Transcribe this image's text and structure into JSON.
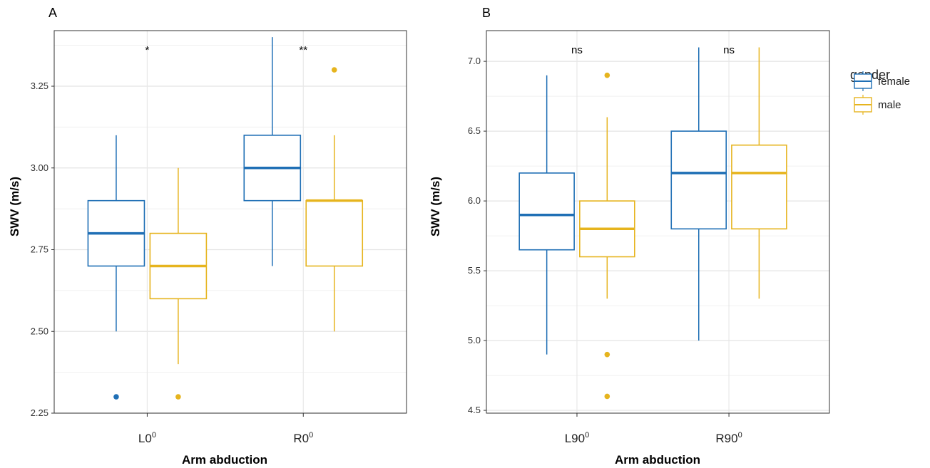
{
  "chart_data": [
    {
      "panel": "A",
      "type": "boxplot",
      "xlabel": "Arm abduction",
      "ylabel": "SWV (m/s)",
      "ylim": [
        2.25,
        3.42
      ],
      "yticks": [
        2.25,
        2.5,
        2.75,
        3.0,
        3.25
      ],
      "ytick_labels": [
        "2.25",
        "2.50",
        "2.75",
        "3.00",
        "3.25"
      ],
      "grid": true,
      "categories": [
        {
          "base": "L0",
          "sup": "0"
        },
        {
          "base": "R0",
          "sup": "0"
        }
      ],
      "significance": [
        "*",
        "**"
      ],
      "series": [
        {
          "name": "female",
          "boxes": [
            {
              "whisker_low": 2.5,
              "q1": 2.7,
              "median": 2.8,
              "q3": 2.9,
              "whisker_high": 3.1,
              "outliers": [
                2.3
              ]
            },
            {
              "whisker_low": 2.7,
              "q1": 2.9,
              "median": 3.0,
              "q3": 3.1,
              "whisker_high": 3.4,
              "outliers": []
            }
          ]
        },
        {
          "name": "male",
          "boxes": [
            {
              "whisker_low": 2.4,
              "q1": 2.6,
              "median": 2.7,
              "q3": 2.8,
              "whisker_high": 3.0,
              "outliers": [
                2.3
              ]
            },
            {
              "whisker_low": 2.5,
              "q1": 2.7,
              "median": 2.9,
              "q3": 2.9,
              "whisker_high": 3.1,
              "outliers": [
                3.3
              ]
            }
          ]
        }
      ]
    },
    {
      "panel": "B",
      "type": "boxplot",
      "xlabel": "Arm abduction",
      "ylabel": "SWV (m/s)",
      "ylim": [
        4.48,
        7.22
      ],
      "yticks": [
        4.5,
        5.0,
        5.5,
        6.0,
        6.5,
        7.0
      ],
      "ytick_labels": [
        "4.5",
        "5.0",
        "5.5",
        "6.0",
        "6.5",
        "7.0"
      ],
      "grid": true,
      "categories": [
        {
          "base": "L90",
          "sup": "0"
        },
        {
          "base": "R90",
          "sup": "0"
        }
      ],
      "significance": [
        "ns",
        "ns"
      ],
      "series": [
        {
          "name": "female",
          "boxes": [
            {
              "whisker_low": 4.9,
              "q1": 5.65,
              "median": 5.9,
              "q3": 6.2,
              "whisker_high": 6.9,
              "outliers": []
            },
            {
              "whisker_low": 5.0,
              "q1": 5.8,
              "median": 6.2,
              "q3": 6.5,
              "whisker_high": 7.1,
              "outliers": []
            }
          ]
        },
        {
          "name": "male",
          "boxes": [
            {
              "whisker_low": 5.3,
              "q1": 5.6,
              "median": 5.8,
              "q3": 6.0,
              "whisker_high": 6.6,
              "outliers": [
                6.9,
                4.9,
                4.6
              ]
            },
            {
              "whisker_low": 5.3,
              "q1": 5.8,
              "median": 6.2,
              "q3": 6.4,
              "whisker_high": 7.1,
              "outliers": []
            }
          ]
        }
      ]
    }
  ],
  "legend": {
    "title": "gender",
    "placement": "right",
    "items": [
      {
        "label": "female",
        "color": "#1f6fb5"
      },
      {
        "label": "male",
        "color": "#e6b41e"
      }
    ]
  },
  "colors": {
    "female": "#1f6fb5",
    "male": "#e6b41e",
    "grid": "#e6e6e6",
    "frame": "#333333"
  }
}
